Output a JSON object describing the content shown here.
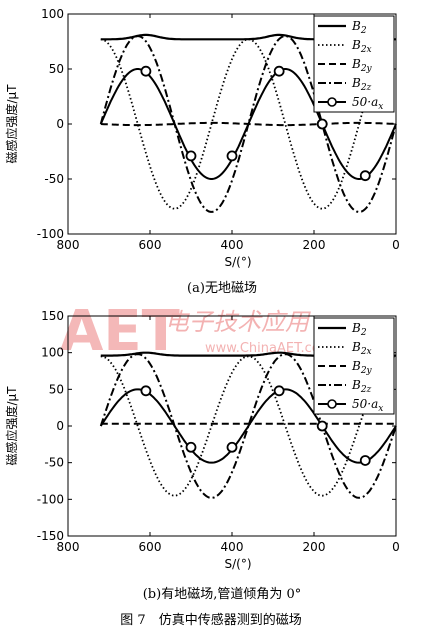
{
  "figure_caption": "图 7　仿真中传感器测到的磁场",
  "watermark": {
    "logo": "AET",
    "text": "电子技术应用",
    "url": "www.ChinaAET.com"
  },
  "chart_data": [
    {
      "type": "line",
      "caption": "(a)无地磁场",
      "xlabel": "S/(°)",
      "ylabel": "磁感应强度/μT",
      "xlim": [
        800,
        0
      ],
      "ylim": [
        -100,
        100
      ],
      "xticks": [
        800,
        600,
        400,
        200,
        0
      ],
      "yticks": [
        100,
        50,
        0,
        -50,
        -100
      ],
      "grid": false,
      "legend_position": "top-right",
      "x_range": [
        720,
        0
      ],
      "series": [
        {
          "name": "B2",
          "label_main": "B",
          "label_sub": "2",
          "style": "solid",
          "color": "#000000",
          "model": {
            "offset": 77,
            "amplitude": 0,
            "period": 0,
            "zero_deg": 0
          }
        },
        {
          "name": "B2x",
          "label_main": "B",
          "label_sub": "2x",
          "style": "dotted",
          "color": "#000000",
          "model": {
            "offset": 0,
            "amplitude": -77,
            "period": 360,
            "zero_deg": 90
          }
        },
        {
          "name": "B2y",
          "label_main": "B",
          "label_sub": "2y",
          "style": "dashed",
          "color": "#000000",
          "model": {
            "offset": 0,
            "amplitude": 1,
            "period": 360,
            "zero_deg": 0
          }
        },
        {
          "name": "B2z",
          "label_main": "B",
          "label_sub": "2z",
          "style": "dashdot",
          "color": "#000000",
          "model": {
            "offset": 0,
            "amplitude": -80,
            "period": 360,
            "zero_deg": 0
          }
        },
        {
          "name": "50·ax",
          "label_main": "50·a",
          "label_sub": "x",
          "style": "solid-marker",
          "color": "#000000",
          "model": {
            "offset": 0,
            "amplitude": -50,
            "period": 360,
            "zero_deg": 0
          },
          "markers": [
            [
              610,
              48
            ],
            [
              500,
              -29
            ],
            [
              400,
              -29
            ],
            [
              285,
              48
            ],
            [
              180,
              0
            ],
            [
              75,
              -47
            ]
          ]
        }
      ]
    },
    {
      "type": "line",
      "caption": "(b)有地磁场,管道倾角为 0°",
      "xlabel": "S/(°)",
      "ylabel": "磁感应强度/μT",
      "xlim": [
        800,
        0
      ],
      "ylim": [
        -150,
        150
      ],
      "xticks": [
        800,
        600,
        400,
        200,
        0
      ],
      "yticks": [
        150,
        100,
        50,
        0,
        -50,
        -100,
        -150
      ],
      "grid": false,
      "legend_position": "top-right",
      "x_range": [
        720,
        0
      ],
      "series": [
        {
          "name": "B2",
          "label_main": "B",
          "label_sub": "2",
          "style": "solid",
          "color": "#000000",
          "model": {
            "offset": 96,
            "amplitude": 0,
            "period": 0,
            "zero_deg": 0
          }
        },
        {
          "name": "B2x",
          "label_main": "B",
          "label_sub": "2x",
          "style": "dotted",
          "color": "#000000",
          "model": {
            "offset": 0,
            "amplitude": -95,
            "period": 360,
            "zero_deg": 90
          }
        },
        {
          "name": "B2y",
          "label_main": "B",
          "label_sub": "2y",
          "style": "dashed",
          "color": "#000000",
          "model": {
            "offset": 3,
            "amplitude": 0,
            "period": 360,
            "zero_deg": 0
          }
        },
        {
          "name": "B2z",
          "label_main": "B",
          "label_sub": "2z",
          "style": "dashdot",
          "color": "#000000",
          "model": {
            "offset": 0,
            "amplitude": -98,
            "period": 360,
            "zero_deg": 0
          }
        },
        {
          "name": "50·ax",
          "label_main": "50·a",
          "label_sub": "x",
          "style": "solid-marker",
          "color": "#000000",
          "model": {
            "offset": 0,
            "amplitude": -50,
            "period": 360,
            "zero_deg": 0
          },
          "markers": [
            [
              610,
              48
            ],
            [
              500,
              -29
            ],
            [
              400,
              -29
            ],
            [
              285,
              48
            ],
            [
              180,
              0
            ],
            [
              75,
              -47
            ]
          ]
        }
      ]
    }
  ]
}
